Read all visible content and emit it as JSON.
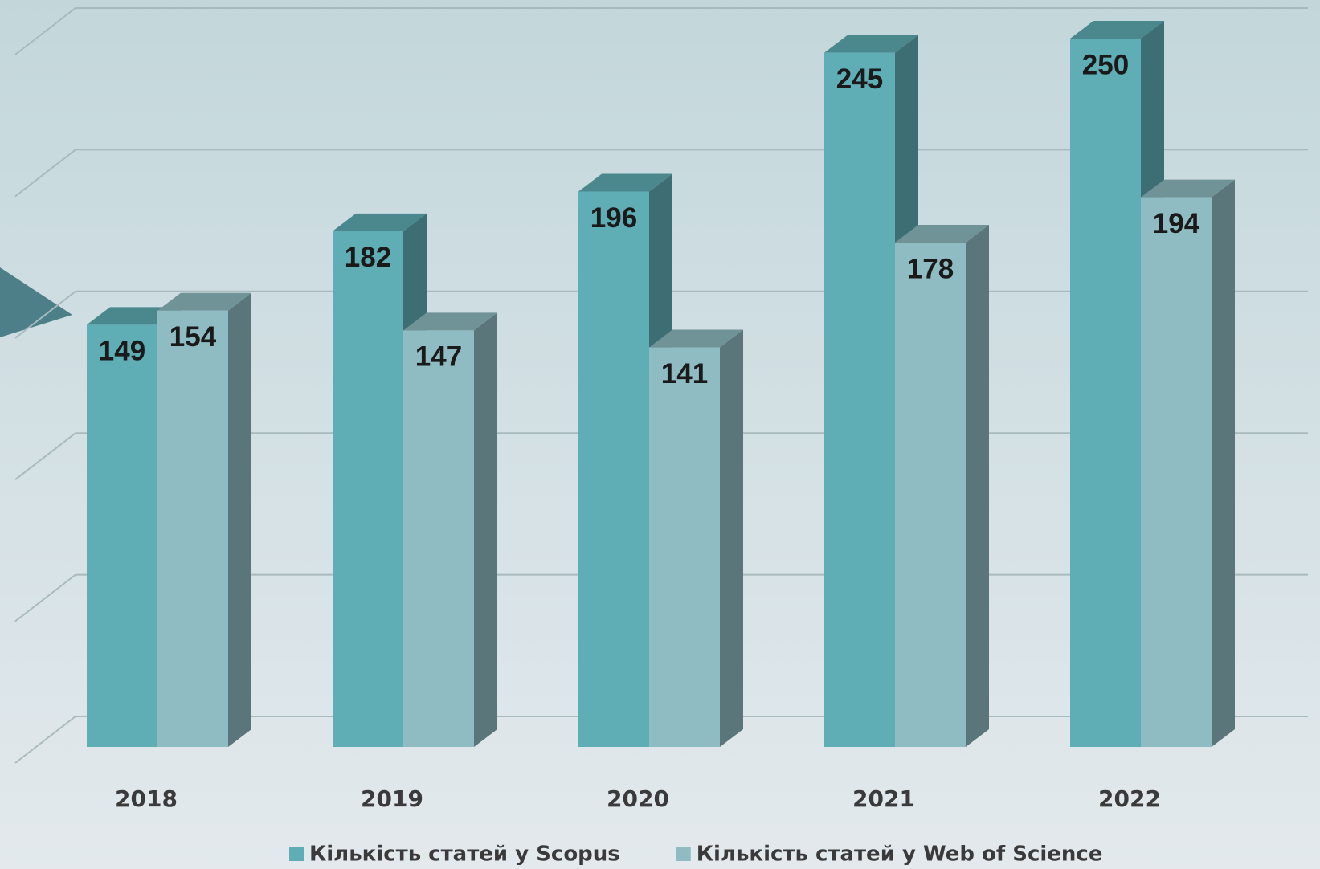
{
  "chart_data": {
    "type": "bar3d",
    "categories": [
      "2018",
      "2019",
      "2020",
      "2021",
      "2022"
    ],
    "series": [
      {
        "name": "Кількість статей у Scopus",
        "color": "#5faeb6",
        "values": [
          149,
          182,
          196,
          245,
          250
        ]
      },
      {
        "name": "Кількість статей у Web of Science",
        "color": "#8fbcc2",
        "values": [
          154,
          147,
          141,
          178,
          194
        ]
      }
    ],
    "ylim": [
      0,
      250
    ],
    "yticks": [
      0,
      50,
      100,
      150,
      200,
      250
    ],
    "grid": true,
    "legend": "bottom"
  }
}
